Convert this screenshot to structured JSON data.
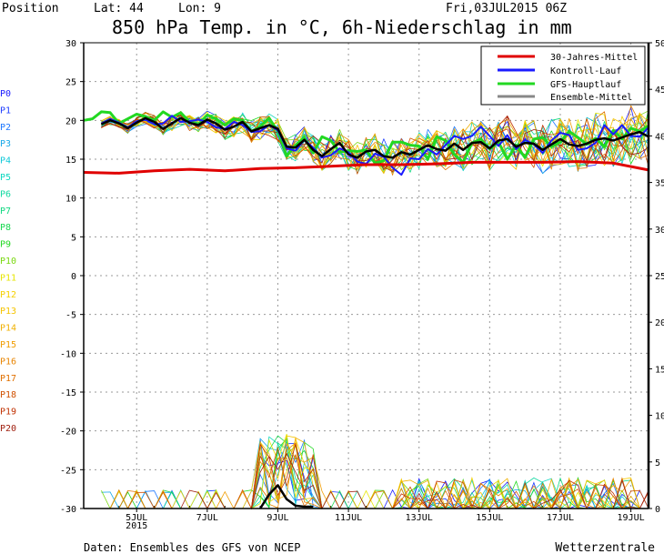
{
  "header": {
    "position": "Position",
    "lat": "Lat: 44",
    "lon": "Lon: 9",
    "run": "Fri,03JUL2015 06Z",
    "title": "850 hPa Temp. in °C, 6h-Niederschlag in mm"
  },
  "footer": {
    "source": "Daten: Ensembles des GFS von NCEP",
    "brand": "Wetterzentrale"
  },
  "members": {
    "labels": [
      "P0",
      "P1",
      "P2",
      "P3",
      "P4",
      "P5",
      "P6",
      "P7",
      "P8",
      "P9",
      "P10",
      "P11",
      "P12",
      "P13",
      "P14",
      "P15",
      "P16",
      "P17",
      "P18",
      "P19",
      "P20"
    ],
    "colors": [
      "#1a1aff",
      "#1e3cff",
      "#1e78ff",
      "#17a8e8",
      "#10c8d8",
      "#10d8c0",
      "#10d8a0",
      "#10d880",
      "#18d850",
      "#22d822",
      "#7ad810",
      "#e6e600",
      "#f5d000",
      "#f5c400",
      "#f0b000",
      "#f09c00",
      "#e88400",
      "#e07000",
      "#d05000",
      "#c03000",
      "#a02010"
    ]
  },
  "colors": {
    "mittel30": "#e00000",
    "kontroll": "#1a1aff",
    "gfs": "#22d822",
    "ensemble": "#888888",
    "ensemble_precip": "#000000"
  },
  "chart_data": {
    "type": "line",
    "ylim": [
      -30,
      30
    ],
    "yticks": [
      30,
      25,
      20,
      15,
      10,
      5,
      0,
      -5,
      -10,
      -15,
      -20,
      -25,
      -30
    ],
    "y2lim": [
      0,
      50
    ],
    "y2ticks": [
      50,
      45,
      40,
      35,
      30,
      25,
      20,
      15,
      10,
      5,
      0
    ],
    "xlim": [
      0,
      16
    ],
    "xticks": [
      {
        "x": 1.5,
        "label": "5JUL"
      },
      {
        "x": 3.5,
        "label": "7JUL"
      },
      {
        "x": 5.5,
        "label": "9JUL"
      },
      {
        "x": 7.5,
        "label": "11JUL"
      },
      {
        "x": 9.5,
        "label": "13JUL"
      },
      {
        "x": 11.5,
        "label": "15JUL"
      },
      {
        "x": 13.5,
        "label": "17JUL"
      },
      {
        "x": 15.5,
        "label": "19JUL"
      }
    ],
    "year_label": "2015",
    "legend": {
      "position": "top-right",
      "entries": [
        "30-Jahres-Mittel",
        "Kontroll-Lauf",
        "GFS-Hauptlauf",
        "Ensemble-Mittel"
      ]
    },
    "series": [
      {
        "name": "30-Jahres-Mittel",
        "x": [
          0,
          1,
          2,
          3,
          4,
          5,
          6,
          7,
          8,
          9,
          10,
          11,
          12,
          13,
          14,
          15,
          16
        ],
        "values": [
          13.3,
          13.2,
          13.5,
          13.7,
          13.5,
          13.8,
          13.9,
          14.1,
          14.3,
          14.3,
          14.4,
          14.6,
          14.6,
          14.6,
          14.7,
          14.5,
          13.6
        ]
      },
      {
        "name": "Kontroll-Lauf",
        "x": [
          0.5,
          0.75,
          1,
          1.25,
          1.5,
          1.75,
          2,
          2.25,
          2.5,
          2.75,
          3,
          3.25,
          3.5,
          3.75,
          4,
          4.25,
          4.5,
          4.75,
          5,
          5.25,
          5.5,
          5.75,
          6,
          6.25,
          6.5,
          6.75,
          7,
          7.25,
          7.5,
          7.75,
          8,
          8.25,
          8.5,
          8.75,
          9,
          9.25,
          9.5,
          9.75,
          10,
          10.25,
          10.5,
          10.75,
          11,
          11.25,
          11.5,
          11.75,
          12,
          12.25,
          12.5,
          12.75,
          13,
          13.25,
          13.5,
          13.75,
          14,
          14.25,
          14.5,
          14.75,
          15,
          15.25,
          15.5,
          15.75,
          16
        ],
        "values": [
          19.6,
          20.2,
          19.7,
          19.1,
          19.9,
          20.1,
          19.5,
          19.6,
          20.6,
          19.8,
          19.9,
          20.1,
          19.8,
          19.1,
          18.9,
          19.8,
          19.4,
          18.5,
          18.6,
          19.4,
          18.7,
          16.4,
          16.1,
          17.5,
          16.5,
          15.2,
          15.5,
          16.4,
          15.9,
          14.7,
          14.4,
          15.7,
          15.3,
          13.9,
          13.0,
          15.1,
          15.0,
          16.3,
          15.6,
          16.8,
          18.0,
          17.6,
          18.0,
          19.2,
          18.0,
          16.7,
          18.1,
          16.3,
          17.5,
          16.9,
          15.8,
          17.4,
          18.4,
          18.1,
          16.2,
          16.4,
          17.1,
          19.4,
          18.2,
          19.4,
          18.0,
          17.9,
          19.1
        ]
      },
      {
        "name": "GFS-Hauptlauf",
        "x": [
          0,
          0.25,
          0.5,
          0.75,
          1,
          1.25,
          1.5,
          1.75,
          2,
          2.25,
          2.5,
          2.75,
          3,
          3.25,
          3.5,
          3.75,
          4,
          4.25,
          4.5,
          4.75,
          5,
          5.25,
          5.5,
          5.75,
          6,
          6.25,
          6.5,
          6.75,
          7,
          7.25,
          7.5,
          7.75,
          8,
          8.25,
          8.5,
          8.75,
          9,
          9.25,
          9.5,
          9.75,
          10,
          10.25,
          10.5,
          10.75,
          11,
          11.25,
          11.5,
          11.75,
          12,
          12.25,
          12.5,
          12.75,
          13,
          13.25,
          13.5,
          13.75,
          14,
          14.25,
          14.5,
          14.75,
          15,
          15.25,
          15.5,
          15.75,
          16
        ],
        "values": [
          20.0,
          20.2,
          21.1,
          21.0,
          19.6,
          20.2,
          20.8,
          20.5,
          20.0,
          21.1,
          20.4,
          21.0,
          19.8,
          19.5,
          20.7,
          20.2,
          19.4,
          20.2,
          20.0,
          18.6,
          19.2,
          20.3,
          18.6,
          15.4,
          16.8,
          17.8,
          15.8,
          17.9,
          17.4,
          15.9,
          16.1,
          16.0,
          16.2,
          14.5,
          14.8,
          17.2,
          17.2,
          16.8,
          16.7,
          15.0,
          17.9,
          17.4,
          15.6,
          14.6,
          17.1,
          17.6,
          16.3,
          17.2,
          15.0,
          16.8,
          15.2,
          17.6,
          17.8,
          16.6,
          17.2,
          18.6,
          17.8,
          16.9,
          17.7,
          16.6,
          18.7,
          17.6,
          19.0,
          18.6,
          19.3
        ]
      },
      {
        "name": "Ensemble-Mittel",
        "x": [
          0.5,
          0.75,
          1,
          1.25,
          1.5,
          1.75,
          2,
          2.25,
          2.5,
          2.75,
          3,
          3.25,
          3.5,
          3.75,
          4,
          4.25,
          4.5,
          4.75,
          5,
          5.25,
          5.5,
          5.75,
          6,
          6.25,
          6.5,
          6.75,
          7,
          7.25,
          7.5,
          7.75,
          8,
          8.25,
          8.5,
          8.75,
          9,
          9.25,
          9.5,
          9.75,
          10,
          10.25,
          10.5,
          10.75,
          11,
          11.25,
          11.5,
          11.75,
          12,
          12.25,
          12.5,
          12.75,
          13,
          13.25,
          13.5,
          13.75,
          14,
          14.25,
          14.5,
          14.75,
          15,
          15.25,
          15.5,
          15.75,
          16
        ],
        "values": [
          19.5,
          20.0,
          19.6,
          19.0,
          19.7,
          20.3,
          19.8,
          18.9,
          19.6,
          20.3,
          19.7,
          19.4,
          20.1,
          19.6,
          18.8,
          19.2,
          19.8,
          18.6,
          19.0,
          19.4,
          18.9,
          16.6,
          16.5,
          17.5,
          16.2,
          15.4,
          16.3,
          17.1,
          15.6,
          15.2,
          16.0,
          16.2,
          15.4,
          15.2,
          15.9,
          15.6,
          16.2,
          16.8,
          16.3,
          16.1,
          17.0,
          16.2,
          17.1,
          17.2,
          16.4,
          17.4,
          17.6,
          16.6,
          17.1,
          17.0,
          16.2,
          16.9,
          17.6,
          16.9,
          16.7,
          17.0,
          17.5,
          17.7,
          17.4,
          17.8,
          18.2,
          18.5,
          17.9
        ]
      },
      {
        "name": "Ensemble-Mittel (Niederschlag)",
        "axis": "right",
        "x": [
          5.0,
          5.25,
          5.5,
          5.75,
          6.0,
          6.25,
          6.5
        ],
        "values": [
          0,
          1.5,
          2.5,
          1.0,
          0.3,
          0.2,
          0.2
        ]
      }
    ]
  }
}
